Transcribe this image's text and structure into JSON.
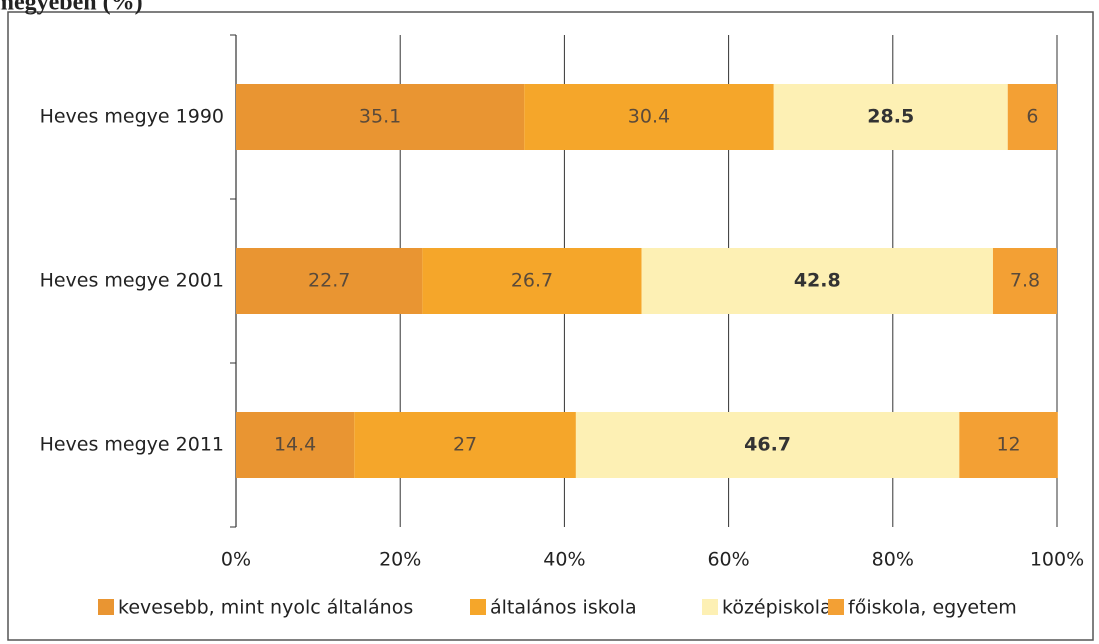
{
  "chart_data": {
    "type": "stacked_barh",
    "title": "megyében (%)",
    "categories": [
      "Heves megye 1990",
      "Heves megye 2001",
      "Heves megye 2011"
    ],
    "series": [
      {
        "name": "kevesebb, mint nyolc általános",
        "color": "#e99532",
        "values": [
          35.1,
          22.7,
          14.4
        ]
      },
      {
        "name": "általános iskola",
        "color": "#f5a62a",
        "values": [
          30.4,
          26.7,
          27
        ]
      },
      {
        "name": "középiskola",
        "color": "#fdf0b4",
        "values": [
          28.5,
          42.8,
          46.7
        ]
      },
      {
        "name": "főiskola, egyetem",
        "color": "#f3a034",
        "values": [
          6,
          7.8,
          12
        ]
      }
    ],
    "xlim": [
      0,
      100
    ],
    "xticks": [
      {
        "value": 0,
        "label": "0%"
      },
      {
        "value": 20,
        "label": "20%"
      },
      {
        "value": 40,
        "label": "40%"
      },
      {
        "value": 60,
        "label": "60%"
      },
      {
        "value": 80,
        "label": "80%"
      },
      {
        "value": 100,
        "label": "100%"
      }
    ],
    "grid": true,
    "legend": "bottom"
  }
}
